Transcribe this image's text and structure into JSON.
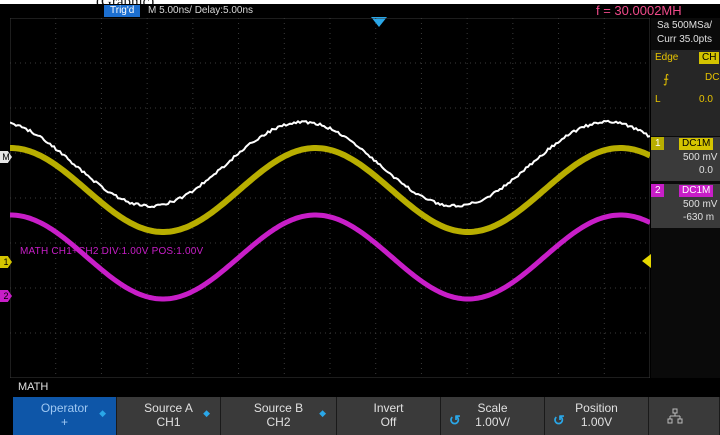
{
  "page_caption": "(Graphic)",
  "status": {
    "trigger_state": "Trig'd",
    "timebase": "M 5.00ns/  Delay:5.00ns",
    "frequency": "f = 30.0002MH"
  },
  "acquisition": {
    "sample_rate": "Sa 500MSa/",
    "record": "Curr 35.0pts"
  },
  "trigger": {
    "type": "Edge",
    "source": "CH",
    "coupling": "DC",
    "level_label": "L",
    "level": "0.0"
  },
  "channels": [
    {
      "number": "1",
      "coupling": "DC1M",
      "scale": "500 mV",
      "offset": "0.0",
      "color": "#b8ae00"
    },
    {
      "number": "2",
      "coupling": "DC1M",
      "scale": "500 mV",
      "offset": "-630 m",
      "color": "#c81ec8"
    }
  ],
  "math": {
    "label": "MATH  CH1+CH2  DIV:1.00V  POS:1.00V",
    "color": "#ffffff"
  },
  "markers": {
    "ch1": "1",
    "ch2": "2",
    "math": "M"
  },
  "menu": {
    "title": "MATH",
    "softkeys": [
      {
        "label": "Operator",
        "value": "+",
        "active": true
      },
      {
        "label": "Source A",
        "value": "CH1"
      },
      {
        "label": "Source B",
        "value": "CH2"
      },
      {
        "label": "Invert",
        "value": "Off"
      },
      {
        "label": "Scale",
        "value": "1.00V/"
      },
      {
        "label": "Position",
        "value": "1.00V"
      }
    ],
    "network_icon": "network-icon"
  }
}
